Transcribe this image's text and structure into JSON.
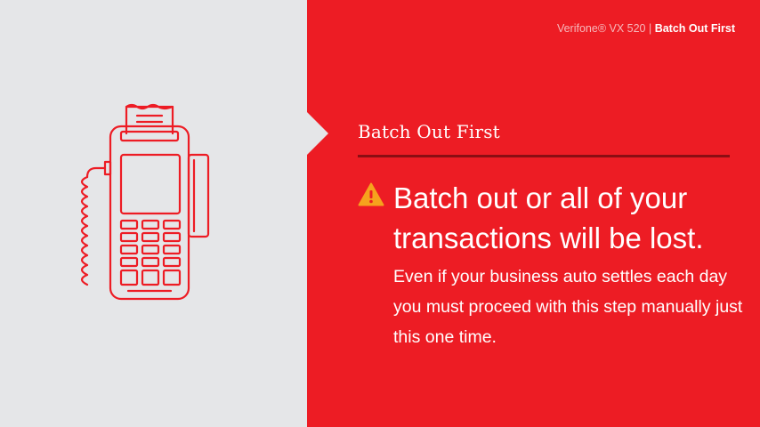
{
  "header": {
    "breadcrumb_product": "Verifone® VX 520 | ",
    "breadcrumb_current": "Batch Out First"
  },
  "main": {
    "section_title": "Batch Out First",
    "headline": "Batch out or all of your transactions will be lost.",
    "body": "Even if your business auto settles each day you must proceed with this step manually just this one time.",
    "warning_icon": "warning-triangle-icon"
  },
  "illustration": {
    "icon": "card-terminal-icon"
  },
  "colors": {
    "brand_red": "#ed1c24",
    "panel_gray": "#e5e6e8",
    "warning_yellow": "#f6a21d",
    "divider": "#8b0e13"
  }
}
